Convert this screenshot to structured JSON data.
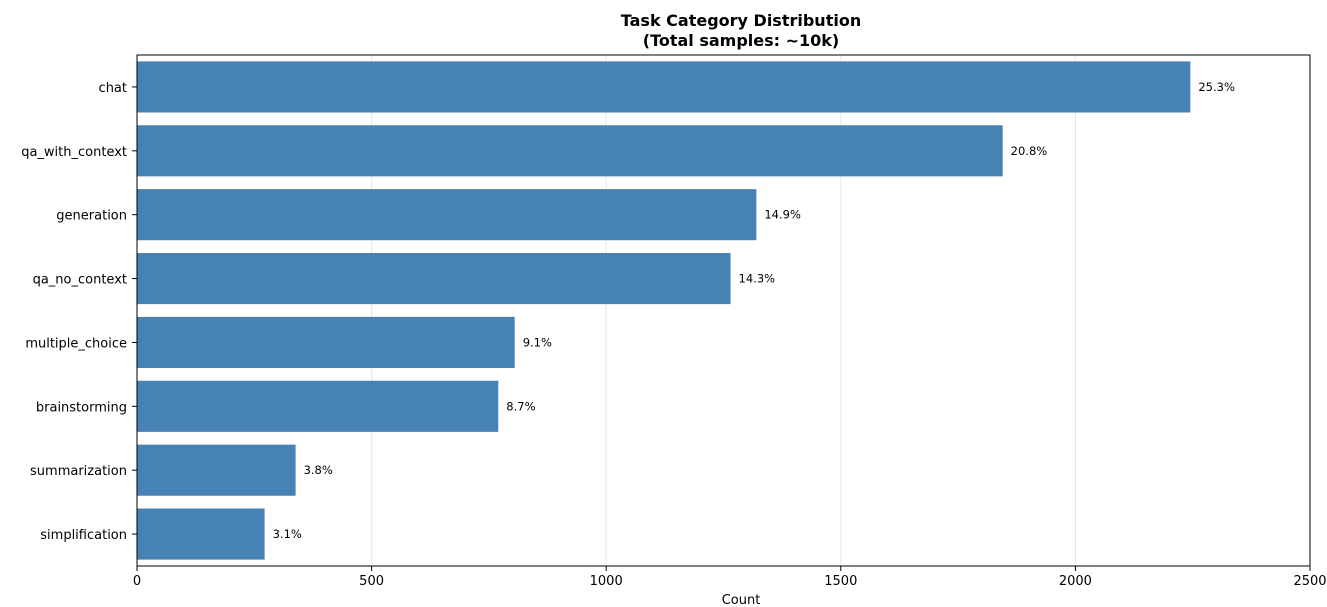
{
  "chart_data": {
    "type": "bar",
    "orientation": "horizontal",
    "title": "Task Category Distribution",
    "subtitle": "(Total samples: ~10k)",
    "xlabel": "Count",
    "ylabel": "",
    "xlim": [
      0,
      2500
    ],
    "xticks": [
      0,
      500,
      1000,
      1500,
      2000,
      2500
    ],
    "grid": "vertical",
    "bar_color": "#4682b4",
    "categories": [
      "chat",
      "qa_with_context",
      "generation",
      "qa_no_context",
      "multiple_choice",
      "brainstorming",
      "summarization",
      "simplification"
    ],
    "values": [
      2245,
      1845,
      1320,
      1265,
      805,
      770,
      338,
      272
    ],
    "labels": [
      "25.3%",
      "20.8%",
      "14.9%",
      "14.3%",
      "9.1%",
      "8.7%",
      "3.8%",
      "3.1%"
    ]
  }
}
